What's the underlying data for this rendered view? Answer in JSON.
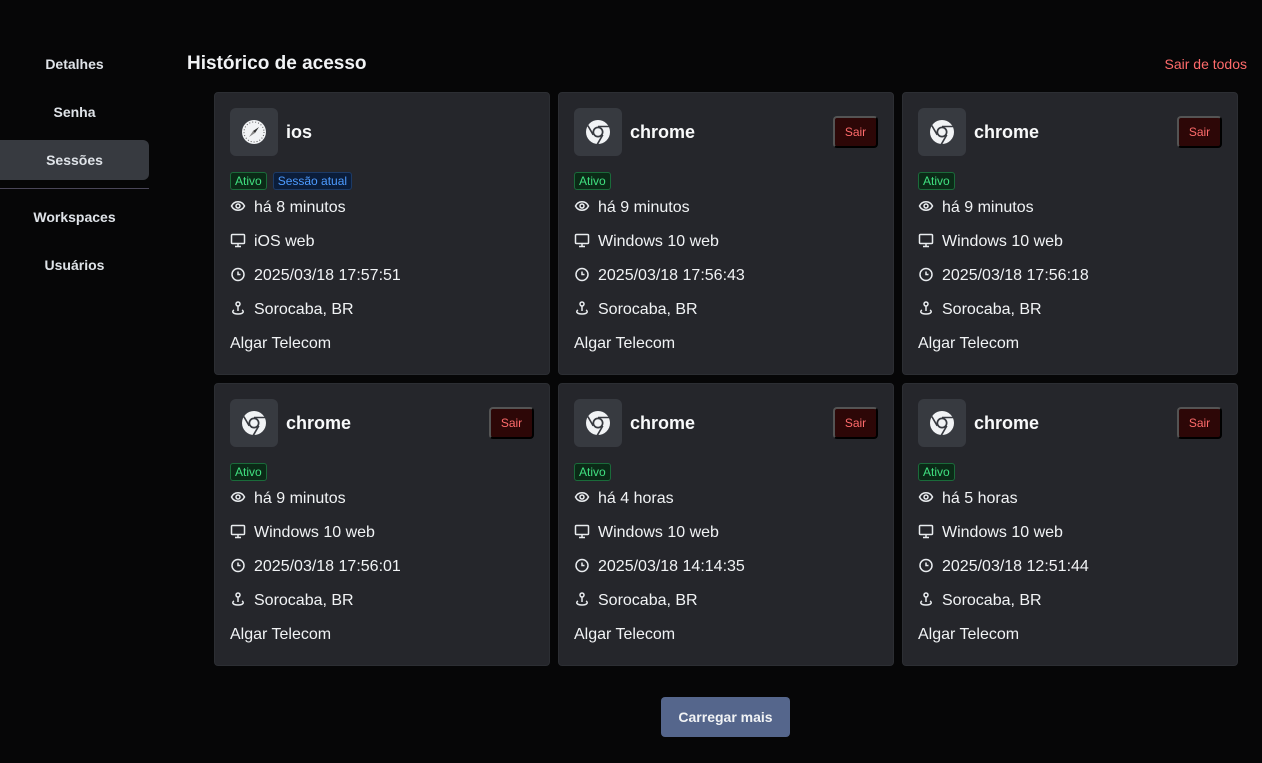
{
  "sidebar": {
    "items": [
      {
        "label": "Detalhes"
      },
      {
        "label": "Senha"
      },
      {
        "label": "Sessões",
        "active": true
      },
      {
        "label": "Workspaces"
      },
      {
        "label": "Usuários"
      }
    ]
  },
  "header": {
    "title": "Histórico de acesso",
    "logout_all": "Sair de todos"
  },
  "labels": {
    "active": "Ativo",
    "current": "Sessão atual",
    "logout": "Sair"
  },
  "sessions": [
    {
      "browser": "ios",
      "icon": "safari-icon",
      "current": true,
      "last_seen": "há 8 minutos",
      "device": "iOS web",
      "datetime": "2025/03/18 17:57:51",
      "location": "Sorocaba, BR",
      "isp": "Algar Telecom"
    },
    {
      "browser": "chrome",
      "icon": "chrome-icon",
      "current": false,
      "last_seen": "há 9 minutos",
      "device": "Windows 10 web",
      "datetime": "2025/03/18 17:56:43",
      "location": "Sorocaba, BR",
      "isp": "Algar Telecom"
    },
    {
      "browser": "chrome",
      "icon": "chrome-icon",
      "current": false,
      "last_seen": "há 9 minutos",
      "device": "Windows 10 web",
      "datetime": "2025/03/18 17:56:18",
      "location": "Sorocaba, BR",
      "isp": "Algar Telecom"
    },
    {
      "browser": "chrome",
      "icon": "chrome-icon",
      "current": false,
      "last_seen": "há 9 minutos",
      "device": "Windows 10 web",
      "datetime": "2025/03/18 17:56:01",
      "location": "Sorocaba, BR",
      "isp": "Algar Telecom"
    },
    {
      "browser": "chrome",
      "icon": "chrome-icon",
      "current": false,
      "last_seen": "há 4 horas",
      "device": "Windows 10 web",
      "datetime": "2025/03/18 14:14:35",
      "location": "Sorocaba, BR",
      "isp": "Algar Telecom"
    },
    {
      "browser": "chrome",
      "icon": "chrome-icon",
      "current": false,
      "last_seen": "há 5 horas",
      "device": "Windows 10 web",
      "datetime": "2025/03/18 12:51:44",
      "location": "Sorocaba, BR",
      "isp": "Algar Telecom"
    }
  ],
  "load_more": "Carregar mais",
  "colors": {
    "accent_red": "#ff6b6b",
    "active_green": "#40e080",
    "current_blue": "#4d9bff",
    "button": "#55668c"
  }
}
